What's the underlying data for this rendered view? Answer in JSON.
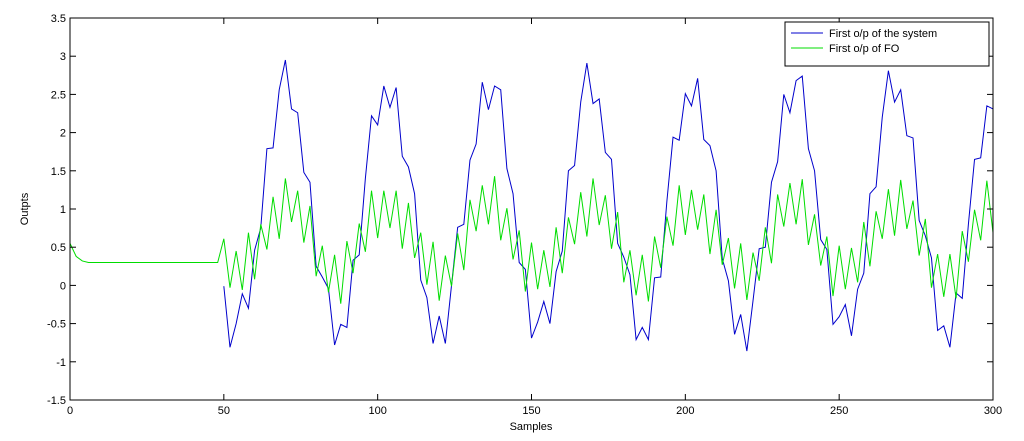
{
  "chart_data": {
    "type": "line",
    "xlabel": "Samples",
    "ylabel": "Outpts",
    "xlim": [
      0,
      300
    ],
    "ylim": [
      -1.5,
      3.5
    ],
    "xticks": [
      0,
      50,
      100,
      150,
      200,
      250,
      300
    ],
    "yticks": [
      -1.5,
      -1,
      -0.5,
      0,
      0.5,
      1,
      1.5,
      2,
      2.5,
      3,
      3.5
    ],
    "legend": "top-right",
    "x": [
      0,
      2,
      4,
      6,
      8,
      10,
      12,
      14,
      16,
      18,
      20,
      22,
      24,
      26,
      28,
      30,
      32,
      34,
      36,
      38,
      40,
      42,
      44,
      46,
      48,
      50,
      52,
      54,
      56,
      58,
      60,
      62,
      64,
      66,
      68,
      70,
      72,
      74,
      76,
      78,
      80,
      82,
      84,
      86,
      88,
      90,
      92,
      94,
      96,
      98,
      100,
      102,
      104,
      106,
      108,
      110,
      112,
      114,
      116,
      118,
      120,
      122,
      124,
      126,
      128,
      130,
      132,
      134,
      136,
      138,
      140,
      142,
      144,
      146,
      148,
      150,
      152,
      154,
      156,
      158,
      160,
      162,
      164,
      166,
      168,
      170,
      172,
      174,
      176,
      178,
      180,
      182,
      184,
      186,
      188,
      190,
      192,
      194,
      196,
      198,
      200,
      202,
      204,
      206,
      208,
      210,
      212,
      214,
      216,
      218,
      220,
      222,
      224,
      226,
      228,
      230,
      232,
      234,
      236,
      238,
      240,
      242,
      244,
      246,
      248,
      250,
      252,
      254,
      256,
      258,
      260,
      262,
      264,
      266,
      268,
      270,
      272,
      274,
      276,
      278,
      280,
      282,
      284,
      286,
      288,
      290,
      292,
      294,
      296,
      298,
      300
    ],
    "series": [
      {
        "name": "First o/p of the system",
        "color": "#0000cc",
        "values": [
          null,
          null,
          null,
          null,
          null,
          null,
          null,
          null,
          null,
          null,
          null,
          null,
          null,
          null,
          null,
          null,
          null,
          null,
          null,
          null,
          null,
          null,
          null,
          null,
          null,
          -0.01,
          -0.81,
          -0.5,
          -0.11,
          -0.3,
          0.46,
          0.75,
          1.79,
          1.8,
          2.56,
          2.95,
          2.31,
          2.26,
          1.48,
          1.35,
          0.25,
          0.11,
          -0.04,
          -0.78,
          -0.51,
          -0.55,
          0.33,
          0.4,
          1.4,
          2.22,
          2.1,
          2.61,
          2.33,
          2.59,
          1.69,
          1.55,
          1.2,
          0.07,
          -0.16,
          -0.76,
          -0.4,
          -0.76,
          0,
          0.76,
          0.8,
          1.64,
          1.85,
          2.66,
          2.3,
          2.61,
          2.56,
          1.53,
          1.2,
          0.3,
          0.21,
          -0.69,
          -0.48,
          -0.21,
          -0.5,
          0.18,
          0.45,
          1.5,
          1.57,
          2.4,
          2.91,
          2.38,
          2.44,
          1.74,
          1.65,
          0.55,
          0.37,
          0.14,
          -0.71,
          -0.55,
          -0.71,
          0.1,
          0.11,
          1.1,
          1.94,
          1.9,
          2.51,
          2.35,
          2.71,
          1.91,
          1.83,
          1.5,
          0.35,
          0.06,
          -0.64,
          -0.38,
          -0.86,
          -0.2,
          0.48,
          0.5,
          1.35,
          1.62,
          2.5,
          2.26,
          2.68,
          2.74,
          1.79,
          1.5,
          0.6,
          0.47,
          -0.51,
          -0.41,
          -0.25,
          -0.66,
          -0.05,
          0.16,
          1.2,
          1.29,
          2.2,
          2.81,
          2.4,
          2.56,
          1.96,
          1.93,
          0.85,
          0.65,
          0.36,
          -0.59,
          -0.53,
          -0.81,
          -0.1,
          -0.17,
          0.8,
          1.65,
          1.67,
          2.35,
          2.31
        ]
      },
      {
        "name": "First o/p of FO",
        "color": "#00dd00",
        "values": [
          0.55,
          0.38,
          0.32,
          0.3,
          0.3,
          0.3,
          0.3,
          0.3,
          0.3,
          0.3,
          0.3,
          0.3,
          0.3,
          0.3,
          0.3,
          0.3,
          0.3,
          0.3,
          0.3,
          0.3,
          0.3,
          0.3,
          0.3,
          0.3,
          0.3,
          0.61,
          -0.03,
          0.45,
          -0.06,
          0.69,
          0.08,
          0.8,
          0.47,
          1.16,
          0.61,
          1.4,
          0.83,
          1.24,
          0.56,
          1.04,
          0.12,
          0.52,
          -0.09,
          0.4,
          -0.24,
          0.58,
          0.16,
          0.81,
          0.44,
          1.24,
          0.62,
          1.24,
          0.75,
          1.24,
          0.48,
          1.08,
          0.36,
          0.69,
          0.01,
          0.57,
          -0.2,
          0.39,
          -0.01,
          0.68,
          0.2,
          1.12,
          0.71,
          1.31,
          0.8,
          1.43,
          0.59,
          1.01,
          0.34,
          0.72,
          -0.08,
          0.56,
          -0.05,
          0.46,
          -0.02,
          0.76,
          0.16,
          0.89,
          0.54,
          1.22,
          0.64,
          1.4,
          0.79,
          1.18,
          0.48,
          0.96,
          0.04,
          0.46,
          -0.13,
          0.4,
          -0.21,
          0.64,
          0.23,
          0.9,
          0.52,
          1.31,
          0.66,
          1.25,
          0.73,
          1.19,
          0.41,
          0.99,
          0.27,
          0.62,
          -0.04,
          0.55,
          -0.19,
          0.43,
          0.06,
          0.76,
          0.29,
          1.19,
          0.77,
          1.34,
          0.8,
          1.39,
          0.53,
          0.93,
          0.26,
          0.64,
          -0.14,
          0.52,
          -0.05,
          0.49,
          0.04,
          0.83,
          0.25,
          0.97,
          0.61,
          1.26,
          0.65,
          1.38,
          0.74,
          1.11,
          0.39,
          0.87,
          -0.03,
          0.41,
          -0.15,
          0.41,
          -0.17,
          0.71,
          0.31,
          0.99,
          0.59,
          1.37,
          0.69
        ]
      }
    ]
  }
}
